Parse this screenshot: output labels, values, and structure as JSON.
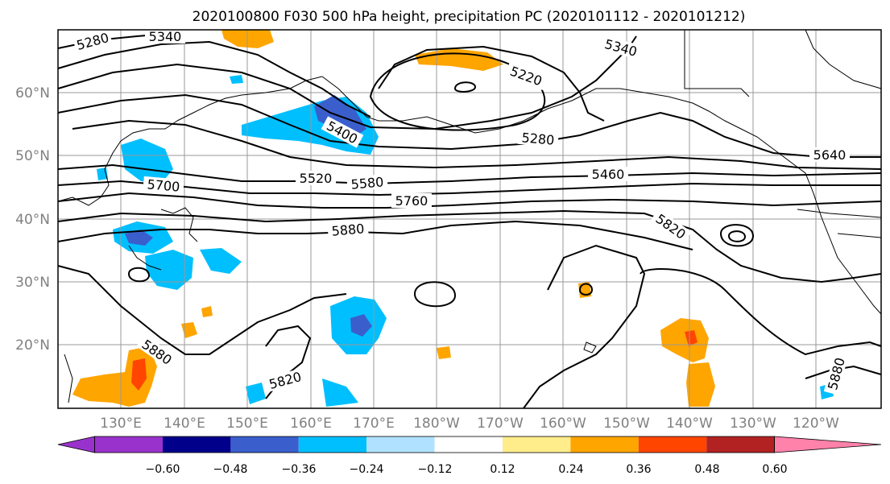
{
  "title": "2020100800 F030 500 hPa height, precipitation PC (2020101112 - 2020101212)",
  "map": {
    "lon_labels": [
      "130°E",
      "140°E",
      "150°E",
      "160°E",
      "170°E",
      "180°W",
      "170°W",
      "160°W",
      "150°W",
      "140°W",
      "130°W",
      "120°W"
    ],
    "lat_labels": [
      "60°N",
      "50°N",
      "40°N",
      "30°N",
      "20°N"
    ],
    "height_contour_labels": [
      "5280",
      "5340",
      "5220",
      "5340",
      "5400",
      "5280",
      "5640",
      "5700",
      "5520",
      "5580",
      "5460",
      "5760",
      "5820",
      "5880",
      "5880",
      "5820",
      "5880"
    ],
    "colorbar": {
      "tick_labels": [
        "−0.60",
        "−0.48",
        "−0.36",
        "−0.24",
        "−0.12",
        "0.12",
        "0.24",
        "0.36",
        "0.48",
        "0.60"
      ],
      "colors": [
        "#9932cc",
        "#00008b",
        "#3a5fcd",
        "#00bfff",
        "#b0e2ff",
        "#ffffff",
        "#ffec8b",
        "#ffa500",
        "#ff4500",
        "#b22222",
        "#ff82ab"
      ]
    }
  }
}
